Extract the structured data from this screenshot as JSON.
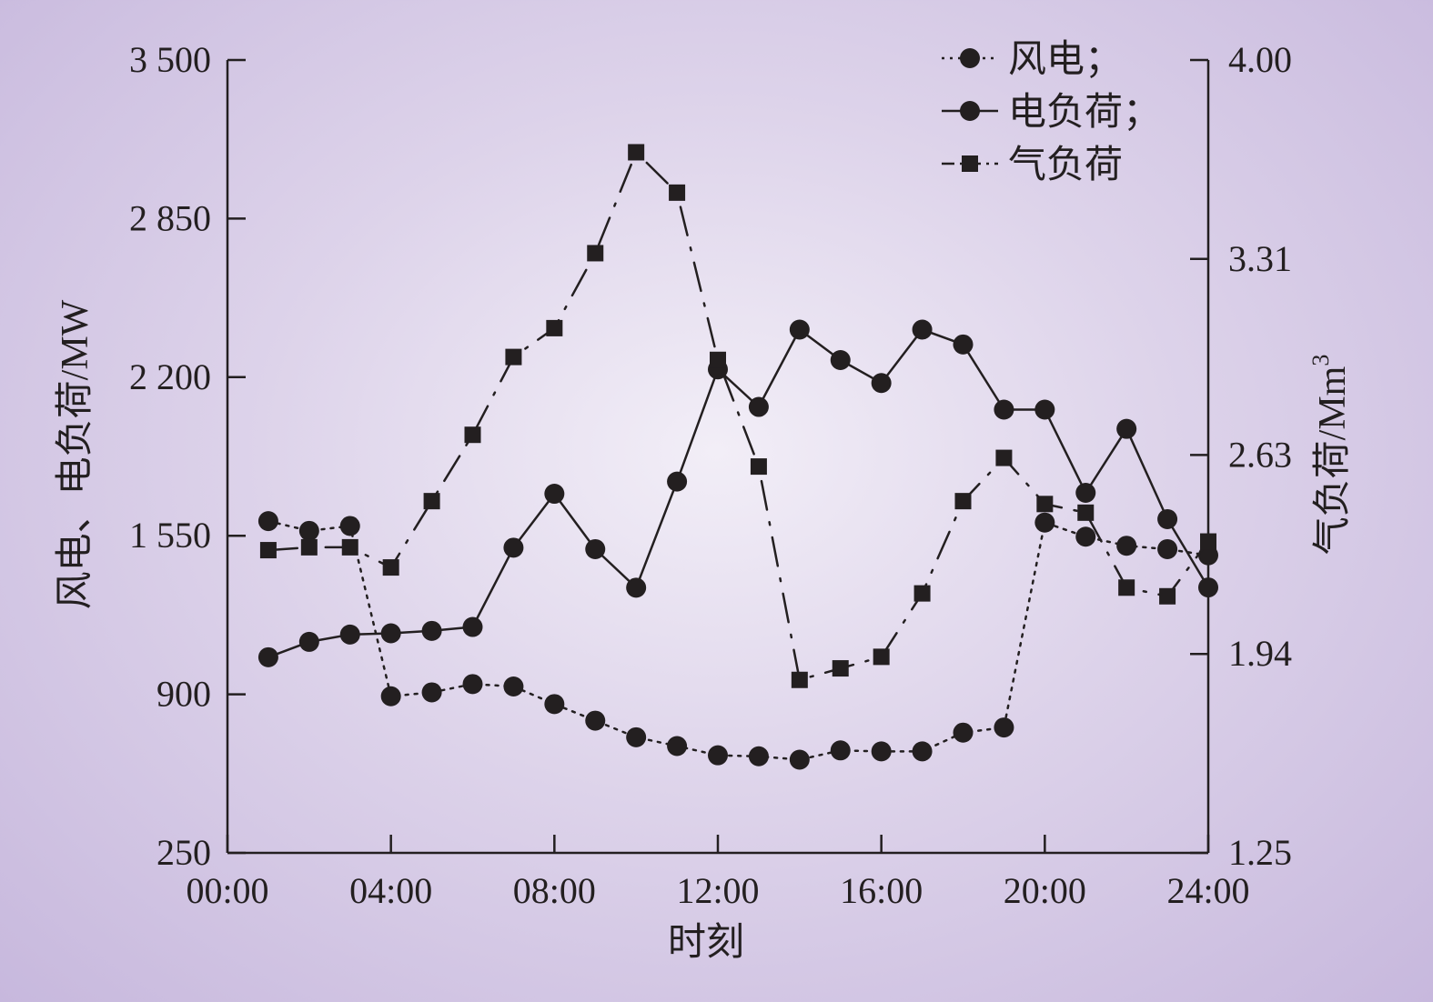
{
  "chart_data": {
    "type": "line",
    "title": "",
    "xlabel": "时刻",
    "ylabel_left": "风电、电负荷/MW",
    "ylabel_right": "气负荷/Mm",
    "ylabel_right_superscript": "3",
    "x_ticks": [
      "00:00",
      "04:00",
      "08:00",
      "12:00",
      "16:00",
      "20:00",
      "24:00"
    ],
    "x_tick_hours": [
      0,
      4,
      8,
      12,
      16,
      20,
      24
    ],
    "x_range": [
      0,
      24
    ],
    "y_left_ticks": [
      "3 500",
      "2 850",
      "2 200",
      "1 550",
      "900",
      "250"
    ],
    "y_left_tick_values": [
      3500,
      2850,
      2200,
      1550,
      900,
      250
    ],
    "y_left_range": [
      250,
      3500
    ],
    "y_right_ticks": [
      "4.00",
      "3.31",
      "2.63",
      "1.94",
      "1.25"
    ],
    "y_right_tick_values": [
      4.0,
      3.31,
      2.63,
      1.94,
      1.25
    ],
    "y_right_range": [
      1.25,
      4.0
    ],
    "legend_position": "top-right",
    "grid": false,
    "x": [
      1,
      2,
      3,
      4,
      5,
      6,
      7,
      8,
      9,
      10,
      11,
      12,
      13,
      14,
      15,
      16,
      17,
      18,
      19,
      20,
      21,
      22,
      23,
      24
    ],
    "series": [
      {
        "name": "风电；",
        "axis": "left",
        "line_style": "dotted",
        "marker": "circle",
        "color": "#231f20",
        "values": [
          1610,
          1570,
          1590,
          892,
          908,
          942,
          932,
          860,
          792,
          724,
          688,
          650,
          646,
          632,
          670,
          666,
          666,
          743,
          764,
          1604,
          1546,
          1509,
          1495,
          1470
        ]
      },
      {
        "name": "电负荷；",
        "axis": "left",
        "line_style": "solid",
        "marker": "circle",
        "color": "#231f20",
        "values": [
          1052,
          1115,
          1145,
          1150,
          1160,
          1176,
          1501,
          1722,
          1495,
          1337,
          1772,
          2232,
          2078,
          2395,
          2270,
          2176,
          2395,
          2334,
          2067,
          2067,
          1726,
          1988,
          1618,
          1338
        ]
      },
      {
        "name": "气负荷",
        "axis": "right",
        "line_style": "dash-dot",
        "marker": "square",
        "color": "#231f20",
        "values": [
          2.3,
          2.31,
          2.31,
          2.24,
          2.47,
          2.7,
          2.97,
          3.07,
          3.33,
          3.68,
          3.54,
          2.96,
          2.59,
          1.85,
          1.89,
          1.93,
          2.15,
          2.47,
          2.62,
          2.46,
          2.43,
          2.17,
          2.14,
          2.33
        ]
      }
    ]
  }
}
